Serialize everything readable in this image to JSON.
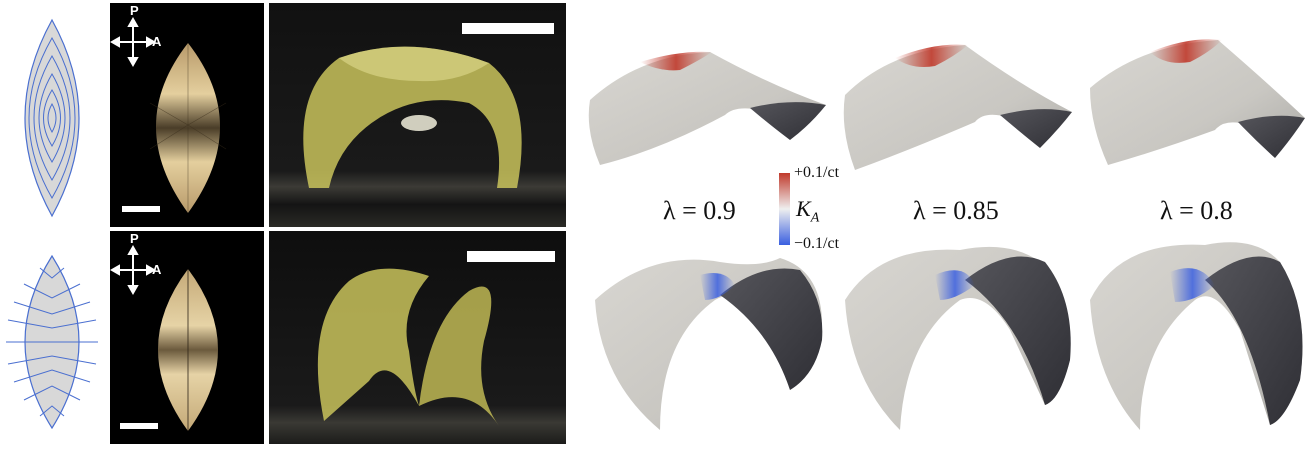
{
  "figure": {
    "compass": {
      "p_label": "P",
      "a_label": "A"
    },
    "lambda_labels": [
      "λ = 0.9",
      "λ = 0.85",
      "λ = 0.8"
    ],
    "colorbar": {
      "max_label": "+0.1/ct",
      "min_label": "−0.1/ct",
      "quantity_label": "K",
      "quantity_subscript": "A",
      "max_color": "#c0392b",
      "mid_color": "#efefef",
      "min_color": "#3a5fe0"
    },
    "colors": {
      "leaf_fill": "#d8d8d8",
      "leaf_line": "#4a6fd0",
      "sheet_surface": "#d4d3cf",
      "sheet_shadow": "#3e3e44",
      "elastomer": "#d9d46a"
    }
  }
}
